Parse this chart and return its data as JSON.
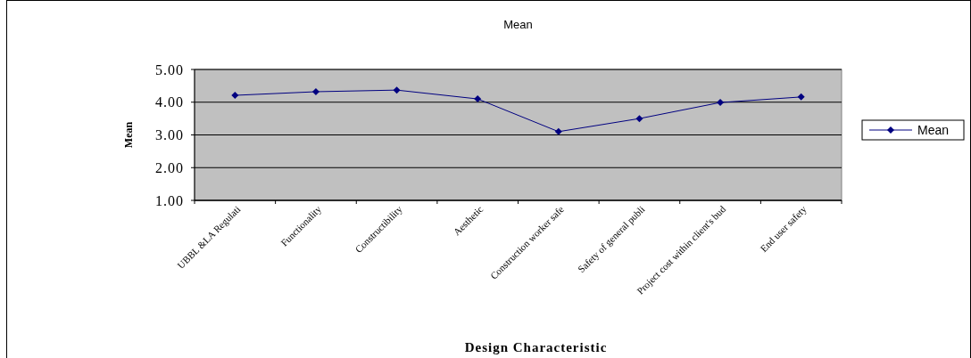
{
  "chart_data": {
    "type": "line",
    "title": "Mean",
    "xlabel": "Design Characteristic",
    "ylabel": "Mean",
    "categories": [
      "UBBL &LA Regulati",
      "Functionality",
      "Constructibility",
      "Aesthetic",
      "Construction worker safe",
      "Safety of general publi",
      "Project cost within client's bud",
      "End user safety"
    ],
    "series": [
      {
        "name": "Mean",
        "color": "#000080",
        "values": [
          4.21,
          4.32,
          4.37,
          4.1,
          3.1,
          3.5,
          3.99,
          4.16
        ]
      }
    ],
    "ylim": [
      1,
      5
    ],
    "yticks": [
      {
        "value": 1,
        "label": "1.00"
      },
      {
        "value": 2,
        "label": "2.00"
      },
      {
        "value": 3,
        "label": "3.00"
      },
      {
        "value": 4,
        "label": "4.00"
      },
      {
        "value": 5,
        "label": "5.00"
      }
    ],
    "grid": "y",
    "legend": "right",
    "marker": "diamond",
    "line_style": "solid"
  }
}
